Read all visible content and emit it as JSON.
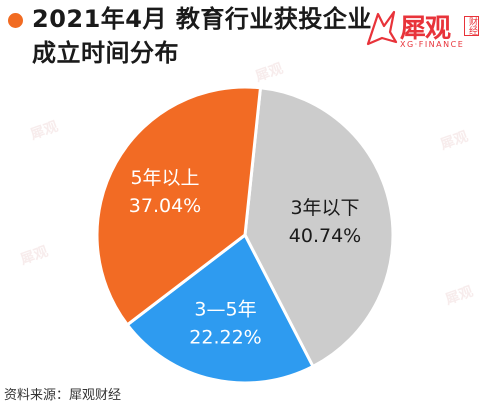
{
  "header": {
    "title_line1": "2021年4月 教育行业获投企业",
    "title_line2": "成立时间分布"
  },
  "logo": {
    "brand": "犀观",
    "sub": "XG·FINANCE",
    "tag": "财经"
  },
  "source": "资料来源：犀观财经",
  "colors": {
    "accent": "#f16b22",
    "orange": "#f26b24",
    "blue": "#2e9bf0",
    "gray": "#cccccc"
  },
  "chart_data": {
    "type": "pie",
    "title": "2021年4月 教育行业获投企业成立时间分布",
    "slices": [
      {
        "label": "3年以下",
        "value": 40.74,
        "display": "40.74%",
        "color": "#cccccc",
        "text_color": "#1a1a1a"
      },
      {
        "label": "3—5年",
        "value": 22.22,
        "display": "22.22%",
        "color": "#2e9bf0",
        "text_color": "#ffffff"
      },
      {
        "label": "5年以上",
        "value": 37.04,
        "display": "37.04%",
        "color": "#f26b24",
        "text_color": "#ffffff"
      }
    ]
  }
}
